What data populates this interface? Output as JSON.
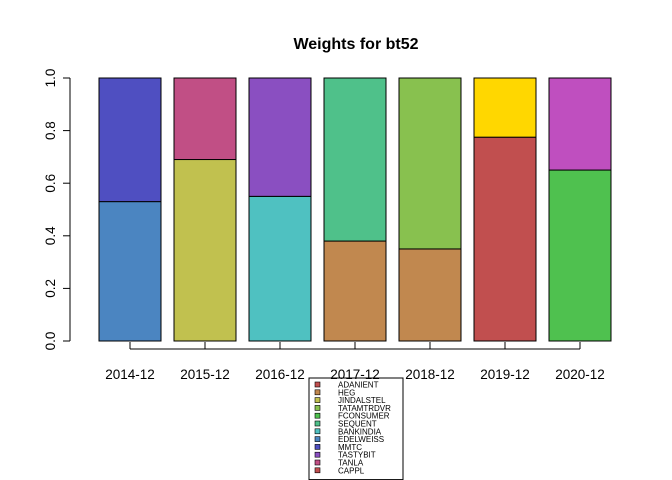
{
  "chart_data": {
    "type": "bar",
    "stacked": true,
    "title": "Weights for bt52",
    "xlabel": "",
    "ylabel": "",
    "ylim": [
      0,
      1
    ],
    "y_ticks": [
      "0.0",
      "0.2",
      "0.4",
      "0.6",
      "0.8",
      "1.0"
    ],
    "categories": [
      "2014-12",
      "2015-12",
      "2016-12",
      "2017-12",
      "2018-12",
      "2019-12",
      "2020-12"
    ],
    "bars": [
      {
        "category": "2014-12",
        "segments": [
          {
            "value": 0.53,
            "color": "#4b85c1"
          },
          {
            "value": 0.47,
            "color": "#4f4fc1"
          }
        ]
      },
      {
        "category": "2015-12",
        "segments": [
          {
            "value": 0.69,
            "color": "#c1c14f"
          },
          {
            "value": 0.31,
            "color": "#c14f85"
          }
        ]
      },
      {
        "category": "2016-12",
        "segments": [
          {
            "value": 0.55,
            "color": "#4fc1c1"
          },
          {
            "value": 0.45,
            "color": "#8a4fc1"
          }
        ]
      },
      {
        "category": "2017-12",
        "segments": [
          {
            "value": 0.38,
            "color": "#c1884f"
          },
          {
            "value": 0.62,
            "color": "#4fc18a"
          }
        ]
      },
      {
        "category": "2018-12",
        "segments": [
          {
            "value": 0.35,
            "color": "#c1884f"
          },
          {
            "value": 0.65,
            "color": "#88c14f"
          }
        ]
      },
      {
        "category": "2019-12",
        "segments": [
          {
            "value": 0.775,
            "color": "#c14f4f"
          },
          {
            "value": 0.225,
            "color": "#ffd700"
          }
        ]
      },
      {
        "category": "2020-12",
        "segments": [
          {
            "value": 0.65,
            "color": "#4fc14f"
          },
          {
            "value": 0.35,
            "color": "#bf4fbf"
          }
        ]
      }
    ],
    "legend": {
      "placement": "bottom-center",
      "entries": [
        {
          "label": "ADANIENT",
          "color": "#c14f4f"
        },
        {
          "label": "HEG",
          "color": "#c1884f"
        },
        {
          "label": "JINDALSTEL",
          "color": "#c1c14f"
        },
        {
          "label": "TATAMTRDVR",
          "color": "#88c14f"
        },
        {
          "label": "FCONSUMER",
          "color": "#4fc14f"
        },
        {
          "label": "SEQUENT",
          "color": "#4fc18a"
        },
        {
          "label": "BANKINDIA",
          "color": "#4fc1c1"
        },
        {
          "label": "EDELWEISS",
          "color": "#4b85c1"
        },
        {
          "label": "MMTC",
          "color": "#4f4fc1"
        },
        {
          "label": "TASTYBIT",
          "color": "#8a4fc1"
        },
        {
          "label": "TANLA",
          "color": "#c14f85"
        },
        {
          "label": "CAPPL",
          "color": "#c14f4f"
        }
      ]
    }
  }
}
